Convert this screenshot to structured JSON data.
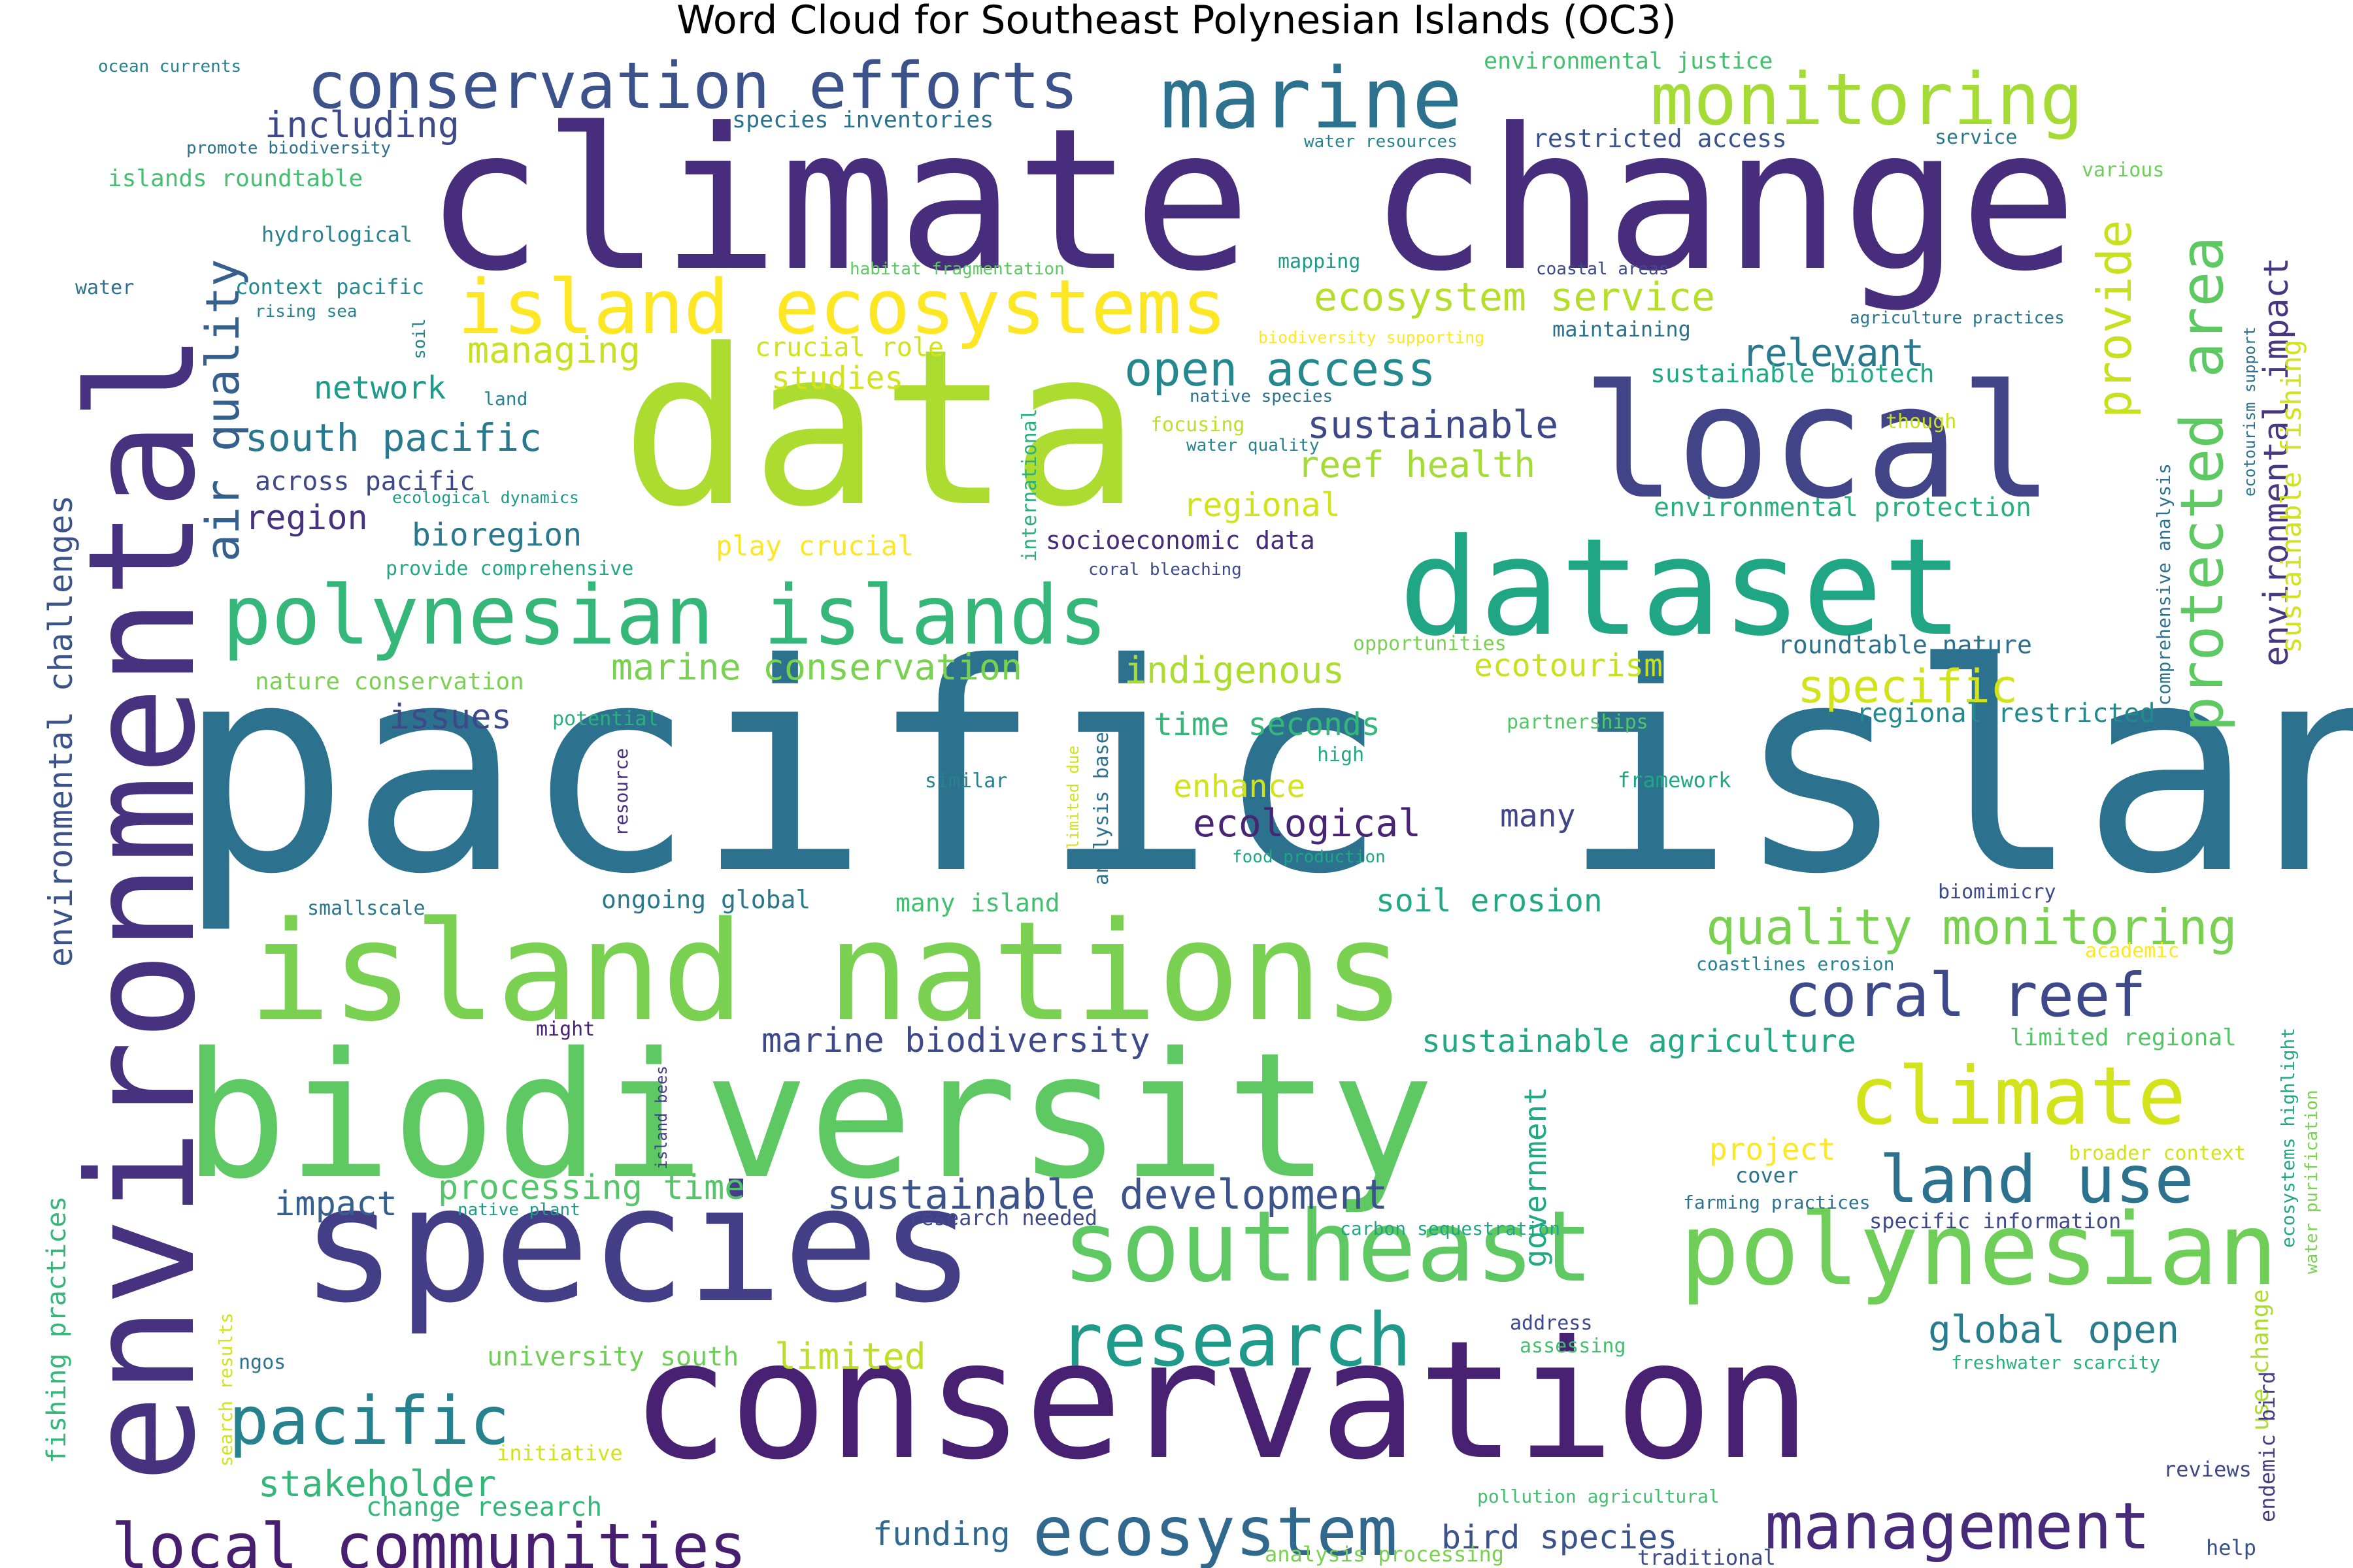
{
  "title": "Word Cloud for Southeast Polynesian Islands (OC3)",
  "palette": "viridis",
  "words": [
    {
      "text": "pacific island",
      "color": "#2c728e"
    },
    {
      "text": "climate change",
      "color": "#472d7b"
    },
    {
      "text": "data",
      "color": "#addc30"
    },
    {
      "text": "environmental",
      "color": "#46327e"
    },
    {
      "text": "conservation",
      "color": "#482173"
    },
    {
      "text": "biodiversity",
      "color": "#5ec962"
    },
    {
      "text": "island nations",
      "color": "#7ad151"
    },
    {
      "text": "species",
      "color": "#433e85"
    },
    {
      "text": "dataset",
      "color": "#21a685"
    },
    {
      "text": "local",
      "color": "#414487"
    },
    {
      "text": "polynesian islands",
      "color": "#35b779"
    },
    {
      "text": "island ecosystems",
      "color": "#fde725"
    },
    {
      "text": "southeast",
      "color": "#5ec962"
    },
    {
      "text": "polynesian",
      "color": "#6ece58"
    },
    {
      "text": "conservation efforts",
      "color": "#3b528b"
    },
    {
      "text": "marine",
      "color": "#2c728e"
    },
    {
      "text": "monitoring",
      "color": "#a5db36"
    },
    {
      "text": "climate",
      "color": "#d2e21b"
    },
    {
      "text": "research",
      "color": "#1f9a8a"
    },
    {
      "text": "pacific",
      "color": "#26828e"
    },
    {
      "text": "ecosystem",
      "color": "#31688e"
    },
    {
      "text": "management",
      "color": "#472a7a"
    },
    {
      "text": "local communities",
      "color": "#481f70"
    },
    {
      "text": "coral reef",
      "color": "#3e4989"
    },
    {
      "text": "land use",
      "color": "#2c728e"
    },
    {
      "text": "protected area",
      "color": "#5ec962"
    },
    {
      "text": "quality monitoring",
      "color": "#7ad151"
    },
    {
      "text": "open access",
      "color": "#23898e"
    },
    {
      "text": "air quality",
      "color": "#355f8d"
    },
    {
      "text": "environmental impact",
      "color": "#453781"
    },
    {
      "text": "sustainable development",
      "color": "#3b528b"
    },
    {
      "text": "provide",
      "color": "#c8e020"
    },
    {
      "text": "ecosystem service",
      "color": "#b5de2b"
    },
    {
      "text": "south pacific",
      "color": "#2a788e"
    },
    {
      "text": "sustainable",
      "color": "#3e4989"
    },
    {
      "text": "marine conservation",
      "color": "#7ad151"
    },
    {
      "text": "marine biodiversity",
      "color": "#3e4989"
    },
    {
      "text": "sustainable agriculture",
      "color": "#22a884"
    },
    {
      "text": "environmental challenges",
      "color": "#3b528b"
    },
    {
      "text": "specific",
      "color": "#d2e21b"
    },
    {
      "text": "global open",
      "color": "#287c8e"
    },
    {
      "text": "ecological",
      "color": "#482475"
    },
    {
      "text": "pacific island",
      "color": "#2c728e"
    },
    {
      "text": "indigenous",
      "color": "#addc30"
    },
    {
      "text": "stakeholder",
      "color": "#35b779"
    },
    {
      "text": "relevant",
      "color": "#2a788e"
    },
    {
      "text": "managing",
      "color": "#c8e020"
    },
    {
      "text": "including",
      "color": "#3e4989"
    },
    {
      "text": "sustainable fishing",
      "color": "#d2e21b"
    },
    {
      "text": "reef health",
      "color": "#a5db36"
    },
    {
      "text": "region",
      "color": "#46327e"
    },
    {
      "text": "processing time",
      "color": "#54c568"
    },
    {
      "text": "soil erosion",
      "color": "#22a884"
    },
    {
      "text": "bird species",
      "color": "#3b528b"
    },
    {
      "text": "limited",
      "color": "#bddf26"
    },
    {
      "text": "funding",
      "color": "#31688e"
    },
    {
      "text": "issues",
      "color": "#3e4989"
    },
    {
      "text": "bioregion",
      "color": "#2a788e"
    },
    {
      "text": "regional",
      "color": "#d2e21b"
    },
    {
      "text": "impact",
      "color": "#355f8d"
    },
    {
      "text": "ecotourism",
      "color": "#c8e020"
    },
    {
      "text": "time seconds",
      "color": "#35b779"
    },
    {
      "text": "enhance",
      "color": "#d2e21b"
    },
    {
      "text": "network",
      "color": "#1f9a8a"
    },
    {
      "text": "project",
      "color": "#fde725"
    },
    {
      "text": "studies",
      "color": "#d2e21b"
    },
    {
      "text": "crucial role",
      "color": "#d2e21b"
    },
    {
      "text": "government",
      "color": "#22a884"
    },
    {
      "text": "many",
      "color": "#414487"
    },
    {
      "text": "university south",
      "color": "#6ece58"
    },
    {
      "text": "change research",
      "color": "#35b779"
    },
    {
      "text": "across pacific",
      "color": "#3e4989"
    },
    {
      "text": "play crucial",
      "color": "#fde725"
    },
    {
      "text": "roundtable nature",
      "color": "#2c728e"
    },
    {
      "text": "regional restricted",
      "color": "#23898e"
    },
    {
      "text": "fishing practices",
      "color": "#35b779"
    },
    {
      "text": "environmental protection",
      "color": "#2ab07f"
    },
    {
      "text": "restricted access",
      "color": "#3b528b"
    },
    {
      "text": "socioeconomic data",
      "color": "#472a7a"
    },
    {
      "text": "ongoing global",
      "color": "#2a788e"
    },
    {
      "text": "many island",
      "color": "#44bf70"
    },
    {
      "text": "limited regional",
      "color": "#54c568"
    },
    {
      "text": "nature conservation",
      "color": "#7ad151"
    },
    {
      "text": "islands roundtable",
      "color": "#44bf70"
    },
    {
      "text": "hydrological",
      "color": "#26828e"
    },
    {
      "text": "species inventories",
      "color": "#2c728e"
    },
    {
      "text": "environmental justice",
      "color": "#44bf70"
    },
    {
      "text": "context pacific",
      "color": "#23898e"
    },
    {
      "text": "provide comprehensive",
      "color": "#22a884"
    },
    {
      "text": "comprehensive analysis",
      "color": "#2c728e"
    },
    {
      "text": "potential",
      "color": "#2ab07f"
    },
    {
      "text": "high",
      "color": "#22a884"
    },
    {
      "text": "framework",
      "color": "#21a685"
    },
    {
      "text": "partnerships",
      "color": "#54c568"
    },
    {
      "text": "opportunities",
      "color": "#7ad151"
    },
    {
      "text": "focusing",
      "color": "#bddf26"
    },
    {
      "text": "though",
      "color": "#c8e020"
    },
    {
      "text": "mapping",
      "color": "#1f9a8a"
    },
    {
      "text": "maintaining",
      "color": "#2c728e"
    },
    {
      "text": "sustainable biotech",
      "color": "#22a884"
    },
    {
      "text": "international",
      "color": "#2ab07f"
    },
    {
      "text": "analysis based",
      "color": "#2c728e"
    },
    {
      "text": "limited due",
      "color": "#d2e21b"
    },
    {
      "text": "resource",
      "color": "#46327e"
    },
    {
      "text": "similar",
      "color": "#26828e"
    },
    {
      "text": "smallscale",
      "color": "#2a788e"
    },
    {
      "text": "might",
      "color": "#482475"
    },
    {
      "text": "island bees",
      "color": "#433e85"
    },
    {
      "text": "native plant",
      "color": "#1f9a8a"
    },
    {
      "text": "research needed",
      "color": "#3e4989"
    },
    {
      "text": "address",
      "color": "#3e4989"
    },
    {
      "text": "assessing",
      "color": "#44bf70"
    },
    {
      "text": "cover",
      "color": "#2c728e"
    },
    {
      "text": "water purification",
      "color": "#7ad151"
    },
    {
      "text": "ecosystems highlight",
      "color": "#22a884"
    },
    {
      "text": "broader context",
      "color": "#d2e21b"
    },
    {
      "text": "specific information",
      "color": "#3e4989"
    },
    {
      "text": "carbon sequestration",
      "color": "#21a685"
    },
    {
      "text": "farming practices",
      "color": "#2c728e"
    },
    {
      "text": "freshwater scarcity",
      "color": "#2ab07f"
    },
    {
      "text": "use change",
      "color": "#addc30"
    },
    {
      "text": "endemic bird",
      "color": "#433e85"
    },
    {
      "text": "reviews",
      "color": "#3e4989"
    },
    {
      "text": "help",
      "color": "#3b528b"
    },
    {
      "text": "traditional",
      "color": "#3e4989"
    },
    {
      "text": "pollution agricultural",
      "color": "#44bf70"
    },
    {
      "text": "analysis processing",
      "color": "#7ad151"
    },
    {
      "text": "initiative",
      "color": "#d2e21b"
    },
    {
      "text": "search results",
      "color": "#d2e21b"
    },
    {
      "text": "ngos",
      "color": "#2c728e"
    },
    {
      "text": "coastlines erosion",
      "color": "#26828e"
    },
    {
      "text": "academic",
      "color": "#fde725"
    },
    {
      "text": "biomimicry",
      "color": "#3e4989"
    },
    {
      "text": "food production",
      "color": "#21a685"
    },
    {
      "text": "coral bleaching",
      "color": "#3e4989"
    },
    {
      "text": "water quality",
      "color": "#26828e"
    },
    {
      "text": "native species",
      "color": "#2c728e"
    },
    {
      "text": "land",
      "color": "#26828e"
    },
    {
      "text": "soil",
      "color": "#26828e"
    },
    {
      "text": "ecological dynamics",
      "color": "#1f9a8a"
    },
    {
      "text": "rising sea",
      "color": "#26828e"
    },
    {
      "text": "water",
      "color": "#2c728e"
    },
    {
      "text": "ocean currents",
      "color": "#26828e"
    },
    {
      "text": "promote biodiversity",
      "color": "#2c728e"
    },
    {
      "text": "water resources",
      "color": "#26828e"
    },
    {
      "text": "service",
      "color": "#2a788e"
    },
    {
      "text": "various",
      "color": "#6ece58"
    },
    {
      "text": "coastal areas",
      "color": "#3e4989"
    },
    {
      "text": "habitat fragmentation",
      "color": "#5ec962"
    },
    {
      "text": "biodiversity supporting",
      "color": "#fde725"
    },
    {
      "text": "agriculture practices",
      "color": "#2a788e"
    },
    {
      "text": "ecotourism support",
      "color": "#2c728e"
    }
  ]
}
